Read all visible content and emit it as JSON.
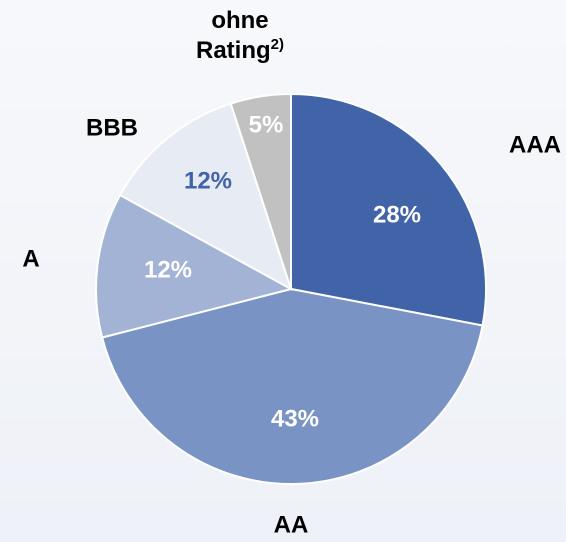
{
  "chart_data": {
    "type": "pie",
    "categories": [
      "AAA",
      "AA",
      "A",
      "BBB",
      "ohne Rating"
    ],
    "footnotes": [
      null,
      null,
      null,
      null,
      "2)"
    ],
    "values": [
      28,
      43,
      12,
      12,
      5
    ],
    "value_labels": [
      "28%",
      "43%",
      "12%",
      "12%",
      "5%"
    ],
    "colors": [
      "#4163a8",
      "#7a93c5",
      "#a2b3d5",
      "#e7ebf3",
      "#c1c1c1"
    ],
    "value_label_colors": [
      "#ffffff",
      "#ffffff",
      "#ffffff",
      "#4163a8",
      "#ffffff"
    ]
  }
}
